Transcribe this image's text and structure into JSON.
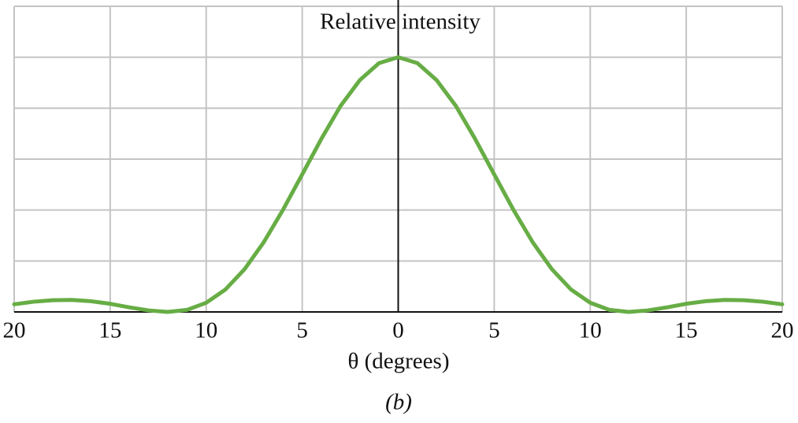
{
  "chart_data": {
    "type": "line",
    "title": "Relative intensity",
    "xlabel": "θ (degrees)",
    "caption": "(b)",
    "x": [
      -20,
      -19,
      -18,
      -17,
      -16,
      -15,
      -14,
      -13,
      -12,
      -11,
      -10,
      -9,
      -8,
      -7,
      -6,
      -5,
      -4,
      -3,
      -2,
      -1,
      0,
      1,
      2,
      3,
      4,
      5,
      6,
      7,
      8,
      9,
      10,
      11,
      12,
      13,
      14,
      15,
      16,
      17,
      18,
      19,
      20
    ],
    "series": [
      {
        "color": "#67ad45",
        "values": [
          0.03,
          0.04,
          0.046,
          0.047,
          0.042,
          0.032,
          0.018,
          0.006,
          0,
          0.008,
          0.036,
          0.088,
          0.168,
          0.274,
          0.401,
          0.54,
          0.68,
          0.809,
          0.91,
          0.977,
          1,
          0.977,
          0.91,
          0.809,
          0.68,
          0.54,
          0.401,
          0.274,
          0.168,
          0.088,
          0.036,
          0.008,
          0,
          0.006,
          0.018,
          0.032,
          0.042,
          0.047,
          0.046,
          0.04,
          0.03
        ]
      }
    ],
    "xlim": [
      -20,
      20
    ],
    "xticks": [
      {
        "value": -20,
        "label": "20"
      },
      {
        "value": -15,
        "label": "15"
      },
      {
        "value": -10,
        "label": "10"
      },
      {
        "value": -5,
        "label": "5"
      },
      0,
      5,
      10,
      15,
      20
    ],
    "ylim": [
      0,
      1.2
    ],
    "yticks": [
      0,
      0.2,
      0.4,
      0.6,
      0.8,
      1,
      1.2
    ],
    "grid": true
  }
}
